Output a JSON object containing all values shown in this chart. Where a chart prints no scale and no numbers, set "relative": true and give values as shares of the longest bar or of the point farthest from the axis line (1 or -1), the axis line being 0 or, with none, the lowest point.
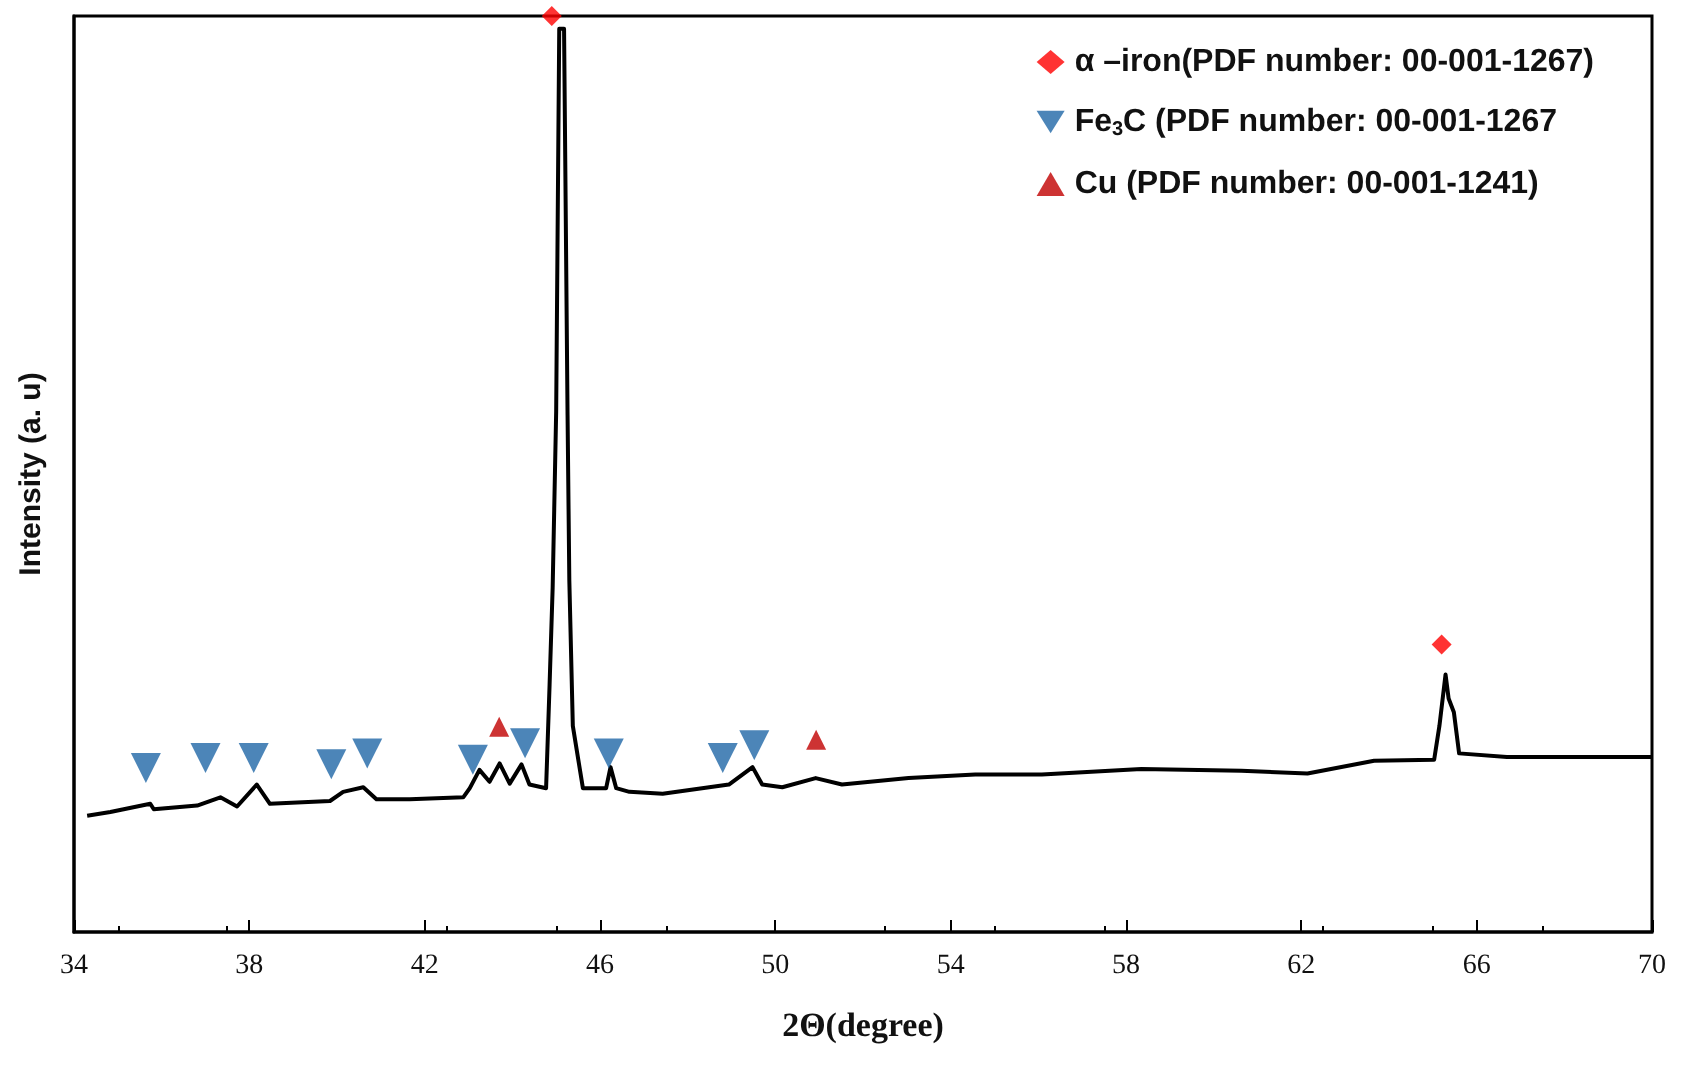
{
  "chart_data": {
    "type": "line",
    "relative": true,
    "xlabel": "2Θ(degree)",
    "ylabel": "Intensity (a. u)",
    "xlim": [
      34,
      70
    ],
    "xticks": [
      34,
      38,
      42,
      46,
      50,
      54,
      58,
      62,
      66,
      70
    ],
    "grid": false,
    "legend": "top right",
    "series": [
      {
        "color": "#000000",
        "marker": "none",
        "x": [
          34.3,
          34.83,
          35.74,
          35.82,
          36.81,
          37.34,
          37.72,
          38.17,
          38.47,
          39.84,
          40.14,
          40.6,
          40.9,
          41.66,
          42.88,
          43.03,
          43.25,
          43.48,
          43.71,
          43.94,
          44.21,
          44.39,
          44.77,
          44.85,
          44.92,
          45.0,
          45.07,
          45.18,
          45.26,
          45.3,
          45.38,
          45.61,
          46.14,
          46.24,
          46.37,
          46.67,
          47.43,
          48.94,
          49.48,
          49.7,
          50.16,
          50.92,
          51.52,
          53.04,
          54.56,
          56.08,
          58.35,
          60.63,
          62.14,
          63.66,
          65.03,
          65.15,
          65.29,
          65.36,
          65.48,
          65.6,
          66.69,
          68.21,
          70.0
        ],
        "values": [
          0.127,
          0.131,
          0.14,
          0.134,
          0.138,
          0.147,
          0.137,
          0.161,
          0.14,
          0.143,
          0.153,
          0.158,
          0.145,
          0.145,
          0.147,
          0.157,
          0.177,
          0.164,
          0.184,
          0.162,
          0.183,
          0.161,
          0.157,
          0.27,
          0.376,
          0.568,
          0.986,
          0.986,
          0.564,
          0.384,
          0.225,
          0.157,
          0.157,
          0.18,
          0.157,
          0.153,
          0.151,
          0.161,
          0.18,
          0.161,
          0.158,
          0.168,
          0.161,
          0.168,
          0.172,
          0.172,
          0.178,
          0.176,
          0.173,
          0.187,
          0.188,
          0.225,
          0.281,
          0.255,
          0.24,
          0.195,
          0.191,
          0.191,
          0.191
        ]
      },
      {
        "type": "scatter",
        "name": "α –iron(PDF number: 00-001-1267)",
        "color": "#ff0000",
        "marker": "diamond",
        "x": [
          44.9,
          65.2
        ],
        "values": [
          1.0,
          0.314
        ]
      },
      {
        "type": "scatter",
        "name": "Fe$_{3}$C (PDF number: 00-001-1267",
        "color": "#1f67a6",
        "marker": "triangle-down",
        "x": [
          35.64,
          37.0,
          38.1,
          39.87,
          40.69,
          43.1,
          44.29,
          46.2,
          48.8,
          49.52
        ],
        "values": [
          0.179,
          0.19,
          0.19,
          0.183,
          0.195,
          0.188,
          0.206,
          0.195,
          0.19,
          0.204
        ]
      },
      {
        "type": "scatter",
        "name": "Cu (PDF number: 00-001-1241)",
        "color": "#c00000",
        "marker": "triangle",
        "x": [
          43.7,
          50.93
        ],
        "values": [
          0.224,
          0.21
        ]
      }
    ]
  }
}
